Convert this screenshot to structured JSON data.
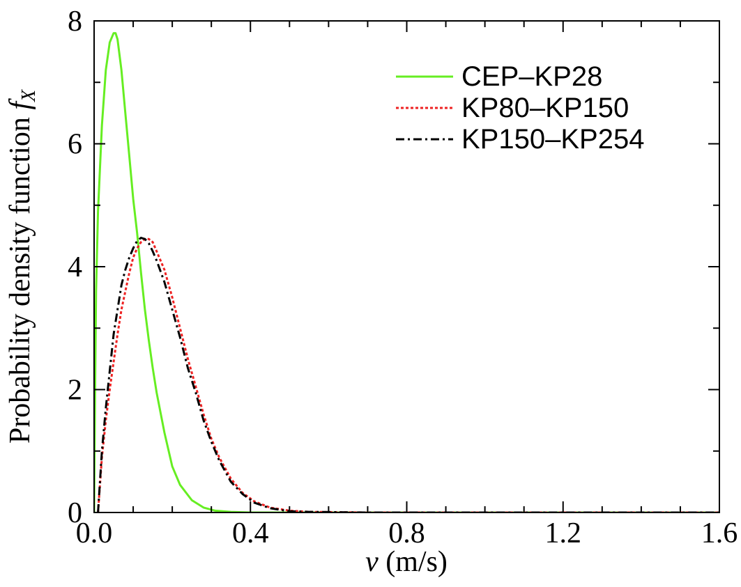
{
  "chart_data": {
    "type": "line",
    "xlabel_var": "v",
    "xlabel_unit": " (m/s)",
    "ylabel_main": "Probability density function ",
    "ylabel_f": "f",
    "ylabel_sub": "X",
    "xlim": [
      0.0,
      1.6
    ],
    "ylim": [
      0,
      8
    ],
    "xticks": [
      0.0,
      0.4,
      0.8,
      1.2,
      1.6
    ],
    "xtick_labels": [
      "0.0",
      "0.4",
      "0.8",
      "1.2",
      "1.6"
    ],
    "yticks": [
      0,
      2,
      4,
      6,
      8
    ],
    "ytick_labels": [
      "0",
      "2",
      "4",
      "6",
      "8"
    ],
    "grid": false,
    "legend_position": "top-right",
    "series": [
      {
        "name": "CEP–KP28",
        "color": "#66ee22",
        "dash": "solid",
        "x": [
          0.0,
          0.0025,
          0.005,
          0.01,
          0.02,
          0.03,
          0.04,
          0.05,
          0.055,
          0.06,
          0.07,
          0.08,
          0.09,
          0.1,
          0.11,
          0.12,
          0.13,
          0.14,
          0.15,
          0.16,
          0.18,
          0.2,
          0.22,
          0.25,
          0.28,
          0.31,
          0.35,
          0.4,
          0.5,
          0.7,
          1.0,
          1.3,
          1.6
        ],
        "y": [
          0.0,
          2.0,
          3.6,
          4.9,
          6.3,
          7.2,
          7.65,
          7.8,
          7.8,
          7.7,
          7.2,
          6.5,
          5.8,
          5.1,
          4.55,
          3.9,
          3.3,
          2.8,
          2.35,
          1.95,
          1.3,
          0.75,
          0.45,
          0.2,
          0.08,
          0.03,
          0.01,
          0.0,
          0.0,
          0.0,
          0.0,
          0.0,
          0.0
        ]
      },
      {
        "name": "KP80–KP150",
        "color": "#ee2222",
        "dash": "dotted",
        "x": [
          0.01,
          0.02,
          0.03,
          0.04,
          0.05,
          0.06,
          0.07,
          0.08,
          0.09,
          0.1,
          0.11,
          0.12,
          0.13,
          0.14,
          0.15,
          0.16,
          0.18,
          0.2,
          0.22,
          0.24,
          0.26,
          0.28,
          0.3,
          0.32,
          0.35,
          0.38,
          0.41,
          0.45,
          0.5,
          0.55,
          0.7,
          1.0,
          1.3,
          1.6
        ],
        "y": [
          0.0,
          0.9,
          1.5,
          2.0,
          2.45,
          2.9,
          3.3,
          3.6,
          3.9,
          4.15,
          4.3,
          4.4,
          4.45,
          4.45,
          4.4,
          4.25,
          3.95,
          3.5,
          3.0,
          2.5,
          2.05,
          1.6,
          1.2,
          0.9,
          0.55,
          0.32,
          0.18,
          0.08,
          0.03,
          0.01,
          0.0,
          0.0,
          0.0,
          0.0
        ]
      },
      {
        "name": "KP150–KP254",
        "color": "#000000",
        "dash": "dashdot",
        "x": [
          0.01,
          0.02,
          0.03,
          0.04,
          0.05,
          0.06,
          0.07,
          0.08,
          0.09,
          0.1,
          0.11,
          0.12,
          0.13,
          0.14,
          0.15,
          0.16,
          0.18,
          0.2,
          0.22,
          0.24,
          0.26,
          0.28,
          0.3,
          0.32,
          0.35,
          0.38,
          0.41,
          0.45,
          0.5,
          0.55,
          0.7,
          1.0,
          1.3,
          1.6
        ],
        "y": [
          0.0,
          1.0,
          1.7,
          2.3,
          2.9,
          3.3,
          3.7,
          3.95,
          4.15,
          4.3,
          4.42,
          4.47,
          4.45,
          4.38,
          4.25,
          4.1,
          3.75,
          3.3,
          2.85,
          2.35,
          1.95,
          1.5,
          1.15,
          0.85,
          0.5,
          0.3,
          0.16,
          0.07,
          0.02,
          0.01,
          0.0,
          0.0,
          0.0,
          0.0
        ]
      }
    ]
  }
}
